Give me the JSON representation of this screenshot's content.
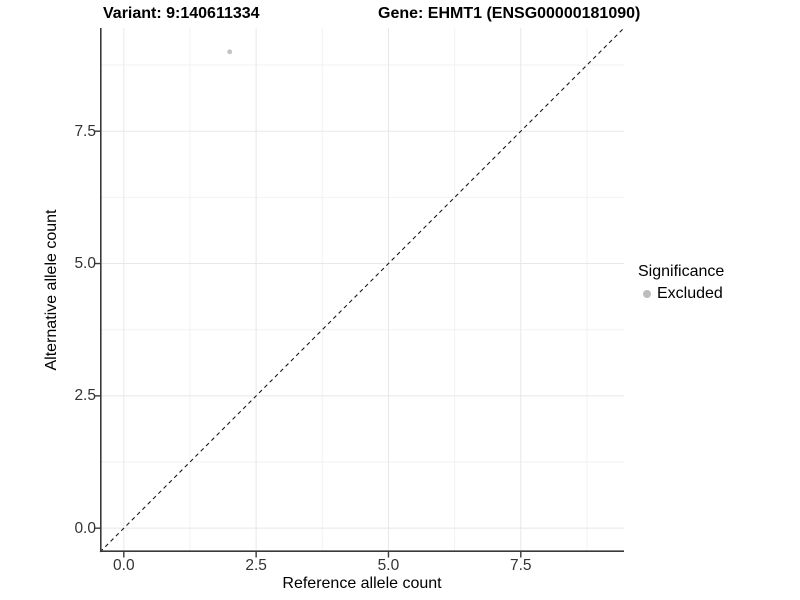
{
  "chart_data": {
    "type": "scatter",
    "title_left": "Variant: 9:140611334",
    "title_right": "Gene: EHMT1 (ENSG00000181090)",
    "xlabel": "Reference allele count",
    "ylabel": "Alternative allele count",
    "xlim": [
      -0.45,
      9.45
    ],
    "ylim": [
      -0.45,
      9.45
    ],
    "x_ticks": {
      "values": [
        0,
        2.5,
        5,
        7.5
      ],
      "labels": [
        "0.0",
        "2.5",
        "5.0",
        "7.5"
      ]
    },
    "y_ticks": {
      "values": [
        0,
        2.5,
        5,
        7.5
      ],
      "labels": [
        "0.0",
        "2.5",
        "5.0",
        "7.5"
      ]
    },
    "minor_ticks": [
      1.25,
      3.75,
      6.25,
      8.75
    ],
    "grid": "major+minor",
    "points": [
      {
        "x": 2,
        "y": 9,
        "series": "Excluded"
      }
    ],
    "identity_line": {
      "slope": 1,
      "intercept": 0,
      "style": "dashed"
    },
    "legend": {
      "title": "Significance",
      "position": "right",
      "items": [
        {
          "label": "Excluded",
          "color": "#bdbdbd"
        }
      ]
    },
    "colors": {
      "point": "#c3c3c3",
      "grid_major": "#e8e8e8",
      "grid_minor": "#f2f2f2",
      "axis_line": "#3a3a3a",
      "dashed_line": "#1a1a1a",
      "tick_text": "#333333",
      "background": "#ffffff"
    }
  }
}
